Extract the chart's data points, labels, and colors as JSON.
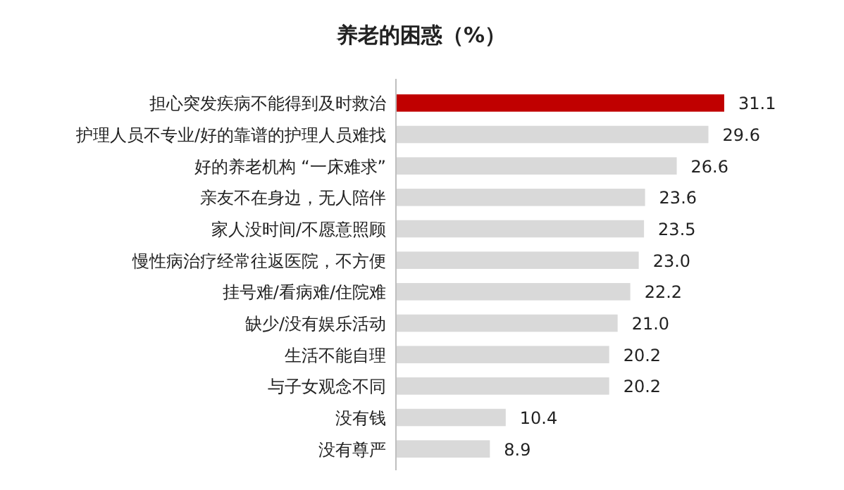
{
  "chart_data": {
    "type": "bar",
    "orientation": "horizontal",
    "title": "养老的困惑（%）",
    "categories": [
      "担心突发疾病不能得到及时救治",
      "护理人员不专业/好的靠谱的护理人员难找",
      "好的养老机构 “一床难求”",
      "亲友不在身边，无人陪伴",
      "家人没时间/不愿意照顾",
      "慢性病治疗经常往返医院，不方便",
      "挂号难/看病难/住院难",
      "缺少/没有娱乐活动",
      "生活不能自理",
      "与子女观念不同",
      "没有钱",
      "没有尊严"
    ],
    "values": [
      31.1,
      29.6,
      26.6,
      23.6,
      23.5,
      23.0,
      22.2,
      21.0,
      20.2,
      20.2,
      10.4,
      8.9
    ],
    "value_labels": [
      "31.1",
      "29.6",
      "26.6",
      "23.6",
      "23.5",
      "23.0",
      "22.2",
      "21.0",
      "20.2",
      "20.2",
      "10.4",
      "8.9"
    ],
    "colors": [
      "#c00000",
      "#d9d9d9",
      "#d9d9d9",
      "#d9d9d9",
      "#d9d9d9",
      "#d9d9d9",
      "#d9d9d9",
      "#d9d9d9",
      "#d9d9d9",
      "#d9d9d9",
      "#d9d9d9",
      "#d9d9d9"
    ]
  }
}
